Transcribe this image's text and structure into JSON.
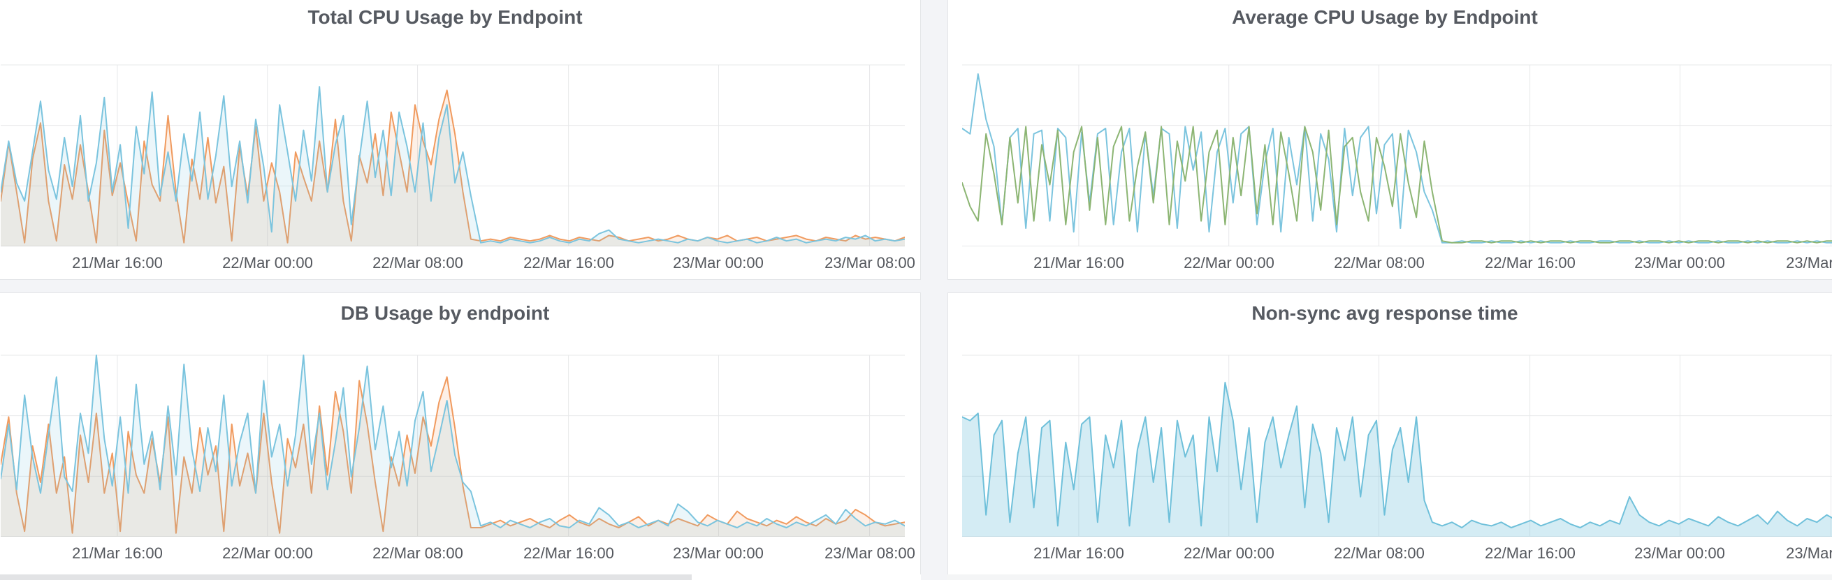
{
  "page": {
    "background": "#f3f4f7",
    "panel_background": "#ffffff",
    "panel_border": "#e3e5e8",
    "grid_color": "#e7e8ea",
    "title_color": "#565a61",
    "tick_color": "#54575d",
    "bottom_strip": {
      "left_block_color": "#e2e3e5",
      "middle_block_color": "#ffffff",
      "right_block_color": "#f4f5f6"
    }
  },
  "chart_data": [
    {
      "type": "line",
      "title": "Total CPU Usage by Endpoint",
      "xlabel": "",
      "ylabel": "",
      "grid": true,
      "legend": false,
      "y_axis_labels_visible": false,
      "y_unit": "percent of top gridline (y-axis labels not visible in crop)",
      "ylim": [
        0,
        115
      ],
      "x_ticks": [
        {
          "label": "21/Mar 16:00",
          "f": 0.129
        },
        {
          "label": "22/Mar 00:00",
          "f": 0.295
        },
        {
          "label": "22/Mar 08:00",
          "f": 0.461
        },
        {
          "label": "22/Mar 16:00",
          "f": 0.628
        },
        {
          "label": "23/Mar 00:00",
          "f": 0.794
        },
        {
          "label": "23/Mar 08:00",
          "f": 0.961
        }
      ],
      "activity_dropoff_fraction": 0.52,
      "series": [
        {
          "name": "orange-endpoint",
          "color": "#f09a5e",
          "fill_opacity": 0.15,
          "active": [
            25,
            57,
            30,
            2,
            48,
            68,
            25,
            3,
            45,
            26,
            56,
            30,
            2,
            64,
            28,
            46,
            24,
            3,
            58,
            34,
            25,
            72,
            30,
            2,
            48,
            26,
            60,
            24,
            44,
            3,
            55,
            28,
            66,
            25,
            46,
            30,
            2,
            52,
            38,
            25,
            58,
            30,
            70,
            25,
            3,
            50,
            35,
            62,
            28,
            74,
            52,
            30,
            78,
            58,
            45,
            70,
            86,
            62,
            30,
            4
          ],
          "quiet": [
            3,
            4,
            3,
            5,
            4,
            3,
            4,
            6,
            4,
            3,
            5,
            4,
            3,
            6,
            5,
            3,
            4,
            5,
            3,
            4,
            6,
            4,
            3,
            5,
            4,
            6,
            3,
            4,
            5,
            3,
            4,
            5,
            6,
            4,
            3,
            5,
            4,
            3,
            6,
            4,
            5,
            4,
            3,
            5
          ]
        },
        {
          "name": "light-blue-endpoint",
          "color": "#7bc4de",
          "fill_opacity": 0.15,
          "active": [
            30,
            58,
            35,
            25,
            52,
            80,
            42,
            26,
            60,
            33,
            72,
            25,
            46,
            82,
            30,
            56,
            10,
            66,
            40,
            85,
            28,
            52,
            25,
            62,
            36,
            74,
            26,
            50,
            83,
            33,
            58,
            24,
            70,
            44,
            8,
            78,
            52,
            25,
            64,
            36,
            88,
            30,
            56,
            72,
            12,
            48,
            80,
            38,
            64,
            28,
            74,
            55,
            30,
            68,
            25,
            60,
            78,
            35,
            52,
            28
          ],
          "quiet": [
            2,
            3,
            2,
            4,
            3,
            2,
            3,
            5,
            3,
            2,
            4,
            3,
            7,
            9,
            4,
            3,
            2,
            3,
            4,
            3,
            2,
            4,
            3,
            5,
            3,
            2,
            3,
            4,
            2,
            3,
            5,
            3,
            4,
            2,
            3,
            4,
            3,
            5,
            4,
            6,
            3,
            4,
            3,
            4
          ]
        }
      ]
    },
    {
      "type": "line",
      "title": "Average CPU Usage by Endpoint",
      "xlabel": "",
      "ylabel": "",
      "grid": true,
      "legend": false,
      "y_axis_labels_visible": false,
      "y_unit": "percent of top gridline (y-axis labels not visible in crop)",
      "ylim": [
        0,
        115
      ],
      "x_ticks": [
        {
          "label": "21/Mar 16:00",
          "f": 0.129
        },
        {
          "label": "22/Mar 00:00",
          "f": 0.295
        },
        {
          "label": "22/Mar 08:00",
          "f": 0.461
        },
        {
          "label": "22/Mar 16:00",
          "f": 0.628
        },
        {
          "label": "23/Mar 00:00",
          "f": 0.794
        },
        {
          "label": "23/Mar 08:00",
          "f": 0.961
        }
      ],
      "activity_dropoff_fraction": 0.52,
      "series": [
        {
          "name": "light-blue-endpoint",
          "color": "#7bc4de",
          "fill_opacity": 0,
          "active": [
            65,
            62,
            95,
            70,
            55,
            12,
            60,
            65,
            10,
            62,
            64,
            14,
            65,
            60,
            8,
            63,
            24,
            62,
            65,
            12,
            52,
            65,
            8,
            62,
            28,
            65,
            62,
            10,
            66,
            42,
            63,
            8,
            52,
            65,
            24,
            62,
            66,
            12,
            46,
            65,
            8,
            60,
            34,
            66,
            14,
            62,
            48,
            8,
            65,
            28,
            60,
            66,
            18,
            56,
            62,
            10,
            64,
            52,
            30,
            20
          ],
          "quiet": [
            2,
            2,
            3,
            2,
            2,
            3,
            2,
            2,
            3,
            2,
            3,
            2,
            2,
            3,
            2,
            2,
            3,
            3,
            2,
            2,
            3,
            2,
            2,
            3,
            2,
            3,
            2,
            2,
            3,
            2,
            2,
            3,
            2,
            3,
            2,
            2,
            3,
            2,
            3,
            2,
            2,
            3,
            2,
            2
          ]
        },
        {
          "name": "green-endpoint",
          "color": "#8cb573",
          "fill_opacity": 0,
          "active": [
            35,
            22,
            14,
            62,
            40,
            12,
            60,
            24,
            66,
            14,
            56,
            34,
            64,
            12,
            52,
            66,
            20,
            60,
            12,
            55,
            66,
            14,
            44,
            63,
            24,
            66,
            12,
            58,
            36,
            66,
            14,
            52,
            64,
            12,
            60,
            28,
            66,
            18,
            56,
            12,
            63,
            40,
            14,
            66,
            52,
            20,
            64,
            12,
            55,
            60,
            30,
            14,
            60,
            44,
            22,
            62,
            35,
            16,
            58,
            30
          ],
          "quiet": [
            3,
            2,
            2,
            3,
            3,
            2,
            3,
            3,
            2,
            3,
            2,
            3,
            3,
            2,
            3,
            3,
            2,
            2,
            3,
            3,
            2,
            3,
            3,
            2,
            3,
            2,
            3,
            3,
            2,
            3,
            3,
            2,
            3,
            2,
            3,
            3,
            2,
            3,
            2,
            3,
            3,
            2,
            3,
            3
          ]
        }
      ]
    },
    {
      "type": "line",
      "title": "DB Usage by endpoint",
      "xlabel": "",
      "ylabel": "",
      "grid": true,
      "legend": false,
      "y_axis_labels_visible": false,
      "y_unit": "percent of top gridline (y-axis labels not visible in crop)",
      "ylim": [
        0,
        115
      ],
      "x_ticks": [
        {
          "label": "21/Mar 16:00",
          "f": 0.129
        },
        {
          "label": "22/Mar 00:00",
          "f": 0.295
        },
        {
          "label": "22/Mar 08:00",
          "f": 0.461
        },
        {
          "label": "22/Mar 16:00",
          "f": 0.628
        },
        {
          "label": "23/Mar 00:00",
          "f": 0.794
        },
        {
          "label": "23/Mar 08:00",
          "f": 0.961
        }
      ],
      "activity_dropoff_fraction": 0.52,
      "series": [
        {
          "name": "orange-endpoint",
          "color": "#f09a5e",
          "fill_opacity": 0.15,
          "active": [
            40,
            66,
            24,
            3,
            50,
            30,
            62,
            24,
            44,
            2,
            56,
            30,
            68,
            24,
            46,
            3,
            58,
            34,
            24,
            54,
            30,
            66,
            2,
            44,
            24,
            60,
            34,
            50,
            3,
            62,
            28,
            46,
            24,
            68,
            30,
            2,
            54,
            38,
            62,
            24,
            72,
            34,
            80,
            58,
            24,
            86,
            62,
            30,
            3,
            44,
            28,
            56,
            35,
            66,
            50,
            74,
            88,
            60,
            28,
            5
          ],
          "quiet": [
            5,
            7,
            9,
            6,
            8,
            10,
            7,
            5,
            9,
            12,
            8,
            6,
            10,
            7,
            5,
            8,
            11,
            6,
            9,
            7,
            10,
            8,
            6,
            12,
            9,
            7,
            14,
            10,
            8,
            6,
            9,
            7,
            11,
            8,
            6,
            10,
            7,
            9,
            15,
            12,
            8,
            6,
            7,
            8
          ]
        },
        {
          "name": "light-blue-endpoint",
          "color": "#7bc4de",
          "fill_opacity": 0.15,
          "active": [
            32,
            62,
            26,
            78,
            44,
            24,
            56,
            88,
            33,
            25,
            68,
            46,
            100,
            54,
            28,
            66,
            24,
            84,
            40,
            58,
            26,
            72,
            34,
            95,
            48,
            25,
            60,
            36,
            78,
            28,
            52,
            68,
            24,
            86,
            44,
            62,
            28,
            56,
            100,
            40,
            68,
            26,
            52,
            82,
            33,
            60,
            94,
            48,
            72,
            38,
            58,
            28,
            64,
            80,
            36,
            55,
            75,
            45,
            30,
            25
          ],
          "quiet": [
            6,
            8,
            5,
            9,
            7,
            5,
            8,
            10,
            6,
            5,
            9,
            7,
            16,
            12,
            6,
            8,
            5,
            7,
            9,
            6,
            18,
            14,
            8,
            6,
            9,
            7,
            5,
            8,
            6,
            10,
            7,
            5,
            8,
            6,
            9,
            12,
            7,
            15,
            10,
            6,
            8,
            7,
            9,
            6
          ]
        }
      ]
    },
    {
      "type": "area",
      "title": "Non-sync avg response time",
      "xlabel": "",
      "ylabel": "",
      "grid": true,
      "legend": false,
      "y_axis_labels_visible": false,
      "y_unit": "percent of top gridline (y-axis labels not visible in crop)",
      "ylim": [
        0,
        115
      ],
      "x_ticks": [
        {
          "label": "21/Mar 16:00",
          "f": 0.129
        },
        {
          "label": "22/Mar 00:00",
          "f": 0.295
        },
        {
          "label": "22/Mar 08:00",
          "f": 0.461
        },
        {
          "label": "22/Mar 16:00",
          "f": 0.628
        },
        {
          "label": "23/Mar 00:00",
          "f": 0.794
        },
        {
          "label": "23/Mar 08:00",
          "f": 0.961
        }
      ],
      "activity_dropoff_fraction": 0.52,
      "series": [
        {
          "name": "light-blue-response-time",
          "color": "#6fc0da",
          "fill_opacity": 0.3,
          "active": [
            66,
            64,
            68,
            12,
            56,
            64,
            8,
            46,
            66,
            16,
            60,
            64,
            6,
            52,
            26,
            62,
            66,
            8,
            56,
            38,
            64,
            6,
            48,
            66,
            30,
            60,
            8,
            64,
            44,
            56,
            6,
            66,
            36,
            85,
            64,
            26,
            60,
            8,
            52,
            66,
            38,
            56,
            72,
            16,
            62,
            46,
            8,
            60,
            42,
            66,
            22,
            56,
            64,
            12,
            48,
            60,
            30,
            66,
            20,
            8
          ],
          "quiet": [
            6,
            8,
            5,
            9,
            7,
            6,
            8,
            5,
            7,
            9,
            6,
            8,
            10,
            7,
            5,
            8,
            6,
            9,
            7,
            22,
            12,
            8,
            6,
            9,
            7,
            10,
            8,
            6,
            11,
            8,
            6,
            9,
            12,
            7,
            14,
            9,
            6,
            10,
            8,
            12,
            9,
            7,
            8,
            6
          ]
        }
      ]
    }
  ]
}
